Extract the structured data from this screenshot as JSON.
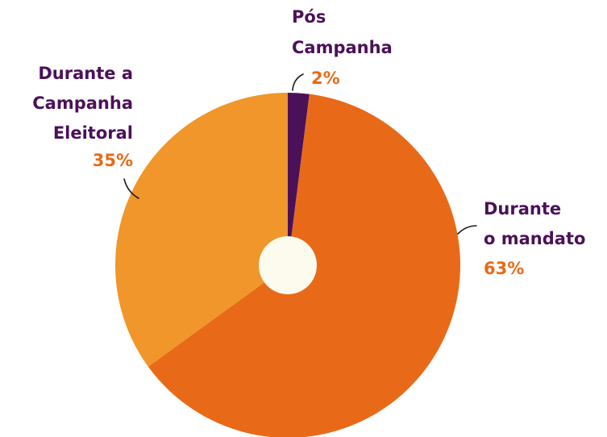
{
  "chart_data": {
    "type": "pie",
    "categories": [
      [
        "Pós",
        "Campanha"
      ],
      [
        "Durante",
        "o mandato"
      ],
      [
        "Durante a",
        "Campanha",
        "Eleitoral"
      ]
    ],
    "values": [
      2,
      63,
      35
    ],
    "value_labels": [
      "2%",
      "63%",
      "35%"
    ],
    "colors": [
      "#4b1158",
      "#e86a18",
      "#f0962a"
    ]
  }
}
